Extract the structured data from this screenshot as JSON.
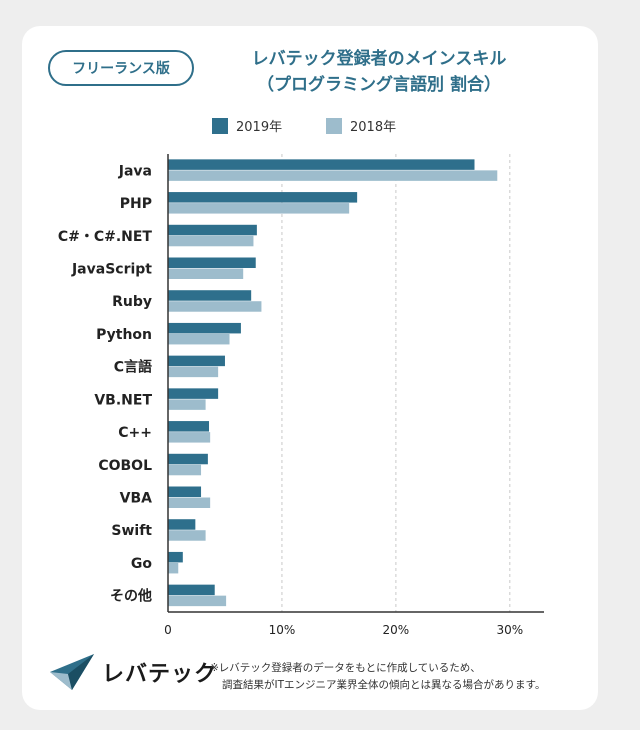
{
  "badge": "フリーランス版",
  "title_line1": "レバテック登録者のメインスキル",
  "title_line2": "（プログラミング言語別 割合）",
  "logo_text": "レバテック",
  "note_line1": "※レバテック登録者のデータをもとに作成しているため、",
  "note_line2": "調査結果がITエンジニア業界全体の傾向とは異なる場合があります。",
  "colors": {
    "series2019": "#2e6f8c",
    "series2018": "#9dbccc",
    "axis": "#333333",
    "grid": "#c9c9c9",
    "accent": "#2f6f8a"
  },
  "chart_data": {
    "type": "bar",
    "orientation": "horizontal",
    "categories": [
      "Java",
      "PHP",
      "C#・C#.NET",
      "JavaScript",
      "Ruby",
      "Python",
      "C言語",
      "VB.NET",
      "C++",
      "COBOL",
      "VBA",
      "Swift",
      "Go",
      "その他"
    ],
    "series": [
      {
        "name": "2019年",
        "values": [
          26.9,
          16.6,
          7.8,
          7.7,
          7.3,
          6.4,
          5.0,
          4.4,
          3.6,
          3.5,
          2.9,
          2.4,
          1.3,
          4.1
        ]
      },
      {
        "name": "2018年",
        "values": [
          28.9,
          15.9,
          7.5,
          6.6,
          8.2,
          5.4,
          4.4,
          3.3,
          3.7,
          2.9,
          3.7,
          3.3,
          0.9,
          5.1
        ]
      }
    ],
    "xlim": [
      0,
      33
    ],
    "xticks": [
      "0",
      "10%",
      "20%",
      "30%"
    ],
    "xtick_values": [
      0,
      10,
      20,
      30
    ],
    "grid": "vertical dashed",
    "legend": "top"
  }
}
